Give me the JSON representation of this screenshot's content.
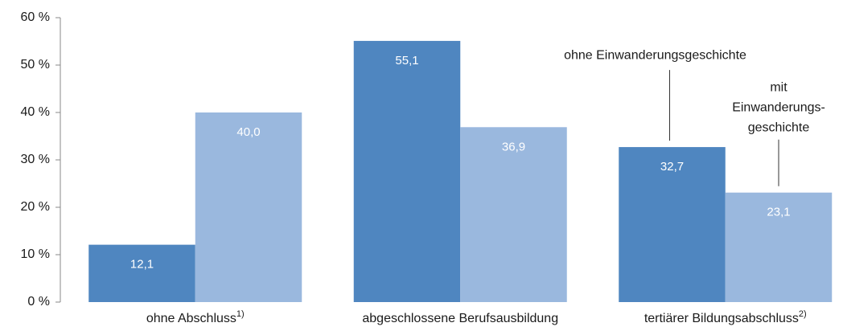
{
  "chart_data": {
    "type": "bar",
    "categories": [
      "ohne Abschluss",
      "abgeschlossene Berufsausbildung",
      "tertiärer Bildungsabschluss"
    ],
    "category_footnotes": [
      "1)",
      null,
      "2)"
    ],
    "series": [
      {
        "name": "ohne Einwanderungsgeschichte",
        "color": "#4f86c0",
        "values": [
          12.1,
          55.1,
          32.7
        ],
        "value_labels": [
          "12,1",
          "55,1",
          "32,7"
        ]
      },
      {
        "name": "mit Einwanderungs-geschichte",
        "color": "#9ab8de",
        "values": [
          40.0,
          36.9,
          23.1
        ],
        "value_labels": [
          "40,0",
          "36,9",
          "23,1"
        ]
      }
    ],
    "ylim": [
      0,
      60
    ],
    "yticks": [
      {
        "value": 0,
        "label": "0 %"
      },
      {
        "value": 10,
        "label": "10 %"
      },
      {
        "value": 20,
        "label": "20 %"
      },
      {
        "value": 30,
        "label": "30 %"
      },
      {
        "value": 40,
        "label": "40 %"
      },
      {
        "value": 50,
        "label": "50 %"
      },
      {
        "value": 60,
        "label": "60 %"
      }
    ],
    "grid": false
  }
}
